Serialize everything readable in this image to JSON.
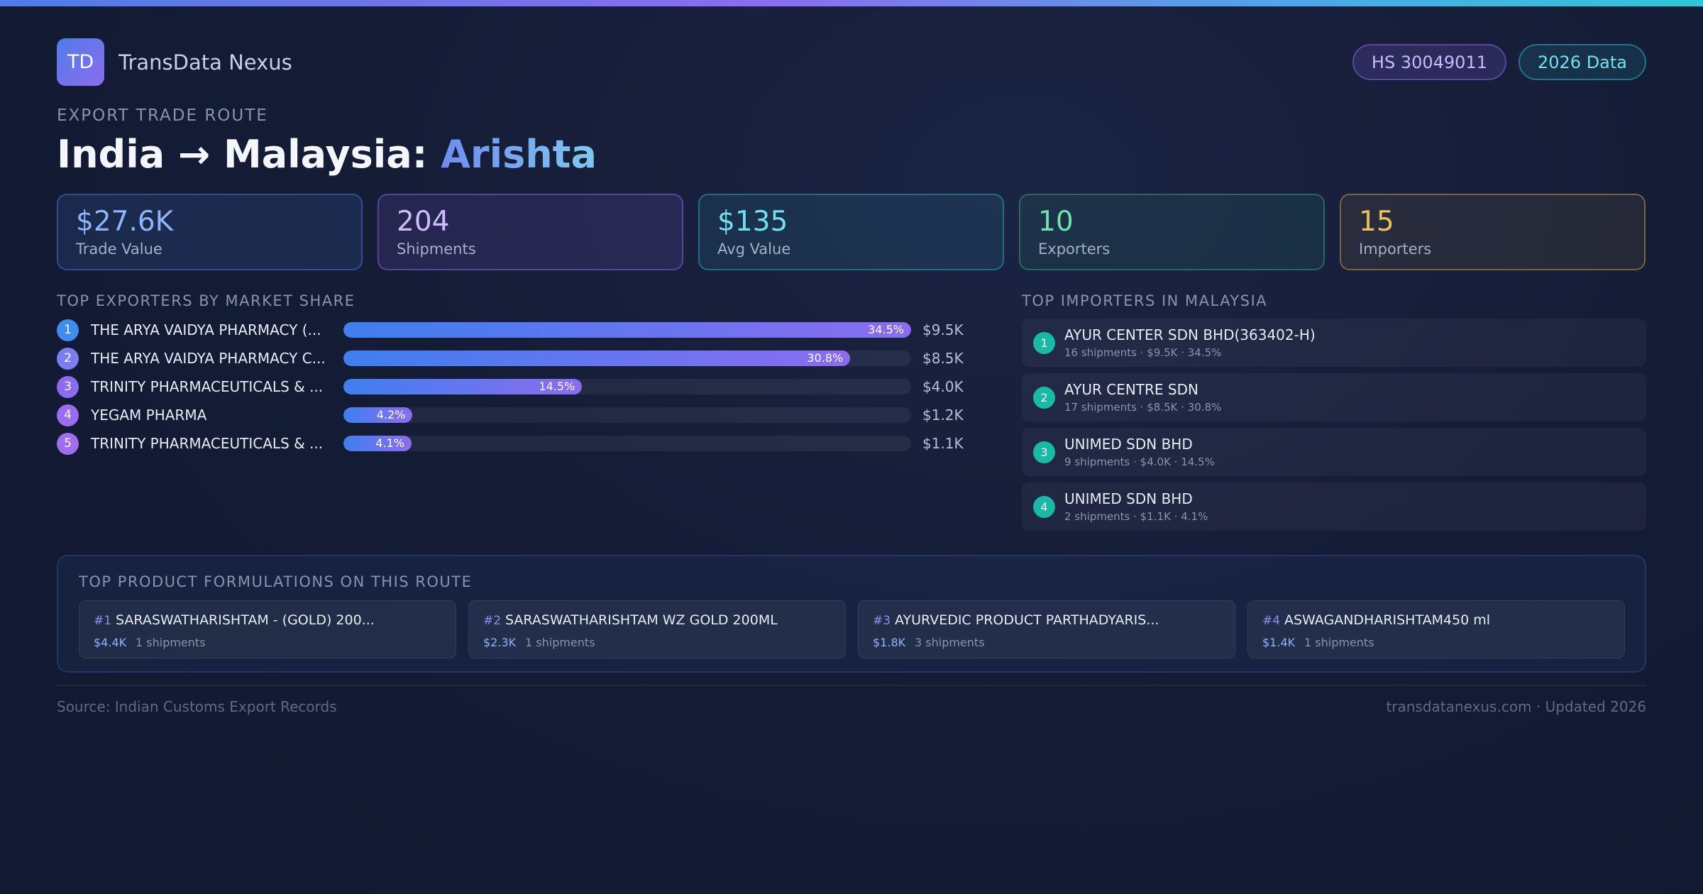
{
  "brand": {
    "logo_text": "TD",
    "name": "TransData Nexus"
  },
  "badges": {
    "hs": "HS 30049011",
    "year": "2026 Data"
  },
  "route": {
    "eyebrow": "EXPORT TRADE ROUTE",
    "title_prefix": "India → Malaysia: ",
    "title_accent": "Arishta"
  },
  "kpis": [
    {
      "value": "$27.6K",
      "label": "Trade Value"
    },
    {
      "value": "204",
      "label": "Shipments"
    },
    {
      "value": "$135",
      "label": "Avg Value"
    },
    {
      "value": "10",
      "label": "Exporters"
    },
    {
      "value": "15",
      "label": "Importers"
    }
  ],
  "exporters": {
    "title": "TOP EXPORTERS BY MARKET SHARE",
    "rows": [
      {
        "rank": "1",
        "name": "THE ARYA VAIDYA PHARMACY (...",
        "share": 34.5,
        "share_label": "34.5%",
        "value": "$9.5K"
      },
      {
        "rank": "2",
        "name": "THE ARYA VAIDYA PHARMACY C...",
        "share": 30.8,
        "share_label": "30.8%",
        "value": "$8.5K"
      },
      {
        "rank": "3",
        "name": "TRINITY PHARMACEUTICALS & ...",
        "share": 14.5,
        "share_label": "14.5%",
        "value": "$4.0K"
      },
      {
        "rank": "4",
        "name": "YEGAM PHARMA",
        "share": 4.2,
        "share_label": "4.2%",
        "value": "$1.2K"
      },
      {
        "rank": "5",
        "name": "TRINITY PHARMACEUTICALS & ...",
        "share": 4.1,
        "share_label": "4.1%",
        "value": "$1.1K"
      }
    ],
    "rank_colors": [
      "#3f8cf0",
      "#7d7cf0",
      "#8b6cf0",
      "#9a6cf0",
      "#a16cf0"
    ]
  },
  "importers": {
    "title": "TOP IMPORTERS IN MALAYSIA",
    "rows": [
      {
        "rank": "1",
        "name": "AYUR CENTER SDN BHD(363402-H)",
        "meta": "16 shipments · $9.5K · 34.5%"
      },
      {
        "rank": "2",
        "name": "AYUR CENTRE SDN",
        "meta": "17 shipments · $8.5K · 30.8%"
      },
      {
        "rank": "3",
        "name": "UNIMED SDN BHD",
        "meta": "9 shipments · $4.0K · 14.5%"
      },
      {
        "rank": "4",
        "name": "UNIMED SDN BHD",
        "meta": "2 shipments · $1.1K · 4.1%"
      }
    ]
  },
  "products": {
    "title": "TOP PRODUCT FORMULATIONS ON THIS ROUTE",
    "items": [
      {
        "rank": "#1",
        "name": "SARASWATHARISHTAM  - (GOLD) 200...",
        "value": "$4.4K",
        "shipments": "1 shipments"
      },
      {
        "rank": "#2",
        "name": "SARASWATHARISHTAM  WZ GOLD 200ML",
        "value": "$2.3K",
        "shipments": "1 shipments"
      },
      {
        "rank": "#3",
        "name": "AYURVEDIC PRODUCT PARTHADYARIS...",
        "value": "$1.8K",
        "shipments": "3 shipments"
      },
      {
        "rank": "#4",
        "name": "ASWAGANDHARISHTAM450 ml",
        "value": "$1.4K",
        "shipments": "1 shipments"
      }
    ]
  },
  "footer": {
    "source": "Source: Indian Customs Export Records",
    "site": "transdatanexus.com · Updated 2026"
  }
}
